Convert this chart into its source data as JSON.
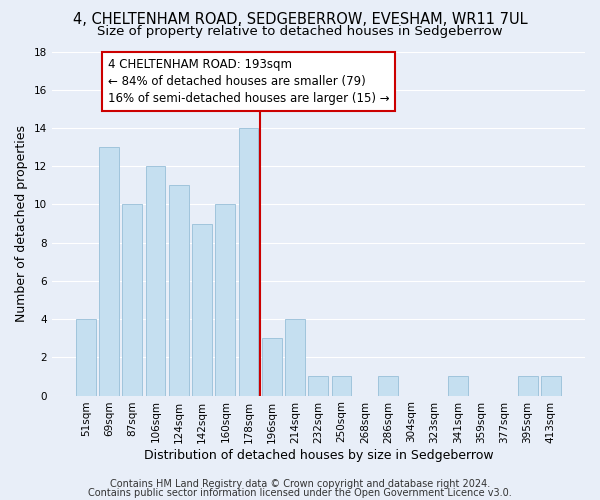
{
  "title": "4, CHELTENHAM ROAD, SEDGEBERROW, EVESHAM, WR11 7UL",
  "subtitle": "Size of property relative to detached houses in Sedgeberrow",
  "xlabel": "Distribution of detached houses by size in Sedgeberrow",
  "ylabel": "Number of detached properties",
  "bar_labels": [
    "51sqm",
    "69sqm",
    "87sqm",
    "106sqm",
    "124sqm",
    "142sqm",
    "160sqm",
    "178sqm",
    "196sqm",
    "214sqm",
    "232sqm",
    "250sqm",
    "268sqm",
    "286sqm",
    "304sqm",
    "323sqm",
    "341sqm",
    "359sqm",
    "377sqm",
    "395sqm",
    "413sqm"
  ],
  "bar_values": [
    4,
    13,
    10,
    12,
    11,
    9,
    10,
    14,
    3,
    4,
    1,
    1,
    0,
    1,
    0,
    0,
    1,
    0,
    0,
    1,
    1
  ],
  "bar_color": "#c5dff0",
  "bar_edge_color": "#a0c4dc",
  "vline_color": "#cc0000",
  "annotation_title": "4 CHELTENHAM ROAD: 193sqm",
  "annotation_line1": "← 84% of detached houses are smaller (79)",
  "annotation_line2": "16% of semi-detached houses are larger (15) →",
  "annotation_box_color": "#ffffff",
  "annotation_box_edge": "#cc0000",
  "ylim": [
    0,
    18
  ],
  "yticks": [
    0,
    2,
    4,
    6,
    8,
    10,
    12,
    14,
    16,
    18
  ],
  "footer1": "Contains HM Land Registry data © Crown copyright and database right 2024.",
  "footer2": "Contains public sector information licensed under the Open Government Licence v3.0.",
  "bg_color": "#e8eef8",
  "grid_color": "#ffffff",
  "title_fontsize": 10.5,
  "subtitle_fontsize": 9.5,
  "axis_label_fontsize": 9,
  "tick_fontsize": 7.5,
  "annotation_fontsize": 8.5,
  "footer_fontsize": 7
}
